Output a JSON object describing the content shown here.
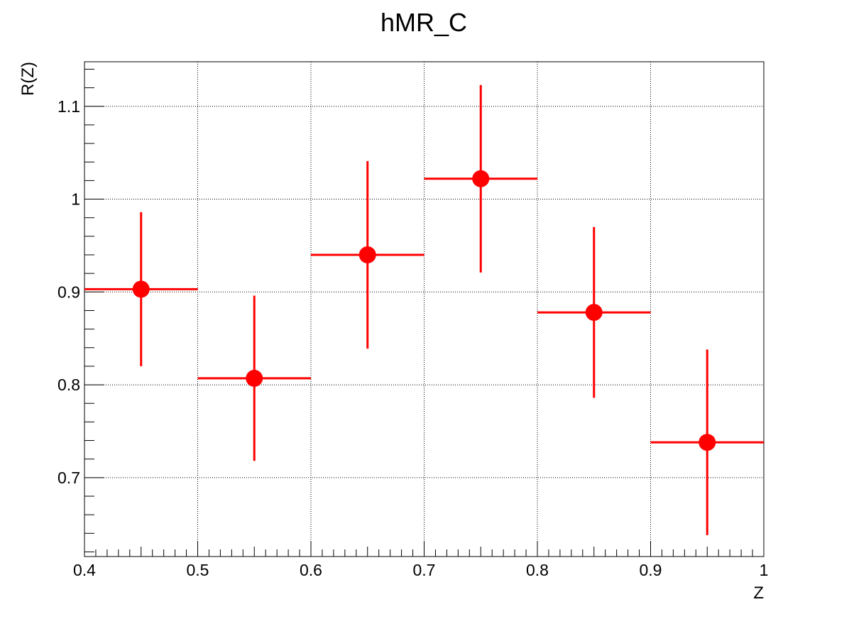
{
  "chart_data": {
    "type": "scatter",
    "title": "hMR_C",
    "xlabel": "Z",
    "ylabel": "R(Z)",
    "xlim": [
      0.4,
      1.0
    ],
    "ylim": [
      0.615,
      1.148
    ],
    "x_ticks": [
      0.4,
      0.5,
      0.6,
      0.7,
      0.8,
      0.9,
      1.0
    ],
    "x_tick_labels": [
      "0.4",
      "0.5",
      "0.6",
      "0.7",
      "0.8",
      "0.9",
      "1"
    ],
    "y_ticks": [
      0.7,
      0.8,
      0.9,
      1.0,
      1.1
    ],
    "y_tick_labels": [
      "0.7",
      "0.8",
      "0.9",
      "1",
      "1.1"
    ],
    "grid": true,
    "marker_color": "#ff0000",
    "series": [
      {
        "points": [
          {
            "x": 0.45,
            "xerr": 0.05,
            "y": 0.903,
            "yerr": 0.083
          },
          {
            "x": 0.55,
            "xerr": 0.05,
            "y": 0.807,
            "yerr": 0.089
          },
          {
            "x": 0.65,
            "xerr": 0.05,
            "y": 0.94,
            "yerr": 0.101
          },
          {
            "x": 0.75,
            "xerr": 0.05,
            "y": 1.022,
            "yerr": 0.101
          },
          {
            "x": 0.85,
            "xerr": 0.05,
            "y": 0.878,
            "yerr": 0.092
          },
          {
            "x": 0.95,
            "xerr": 0.05,
            "y": 0.738,
            "yerr": 0.1
          }
        ]
      }
    ]
  }
}
